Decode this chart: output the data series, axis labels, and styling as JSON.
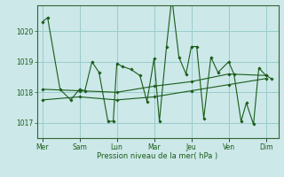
{
  "xlabel": "Pression niveau de la mer( hPa )",
  "bg_color": "#cce8e8",
  "grid_color": "#99cccc",
  "line_color": "#1a5c1a",
  "marker_color": "#1a5c1a",
  "ylim": [
    1016.5,
    1020.85
  ],
  "yticks": [
    1017,
    1018,
    1019,
    1020
  ],
  "x_day_labels": [
    "Mer",
    "Sam",
    "Lun",
    "Mar",
    "Jeu",
    "Ven",
    "Dim"
  ],
  "x_day_positions": [
    0,
    21,
    42,
    63,
    84,
    105,
    126
  ],
  "xlim": [
    -3,
    133
  ],
  "zigzag_points": [
    [
      0,
      1020.3
    ],
    [
      3,
      1020.45
    ],
    [
      10,
      1018.1
    ],
    [
      16,
      1017.75
    ],
    [
      21,
      1018.1
    ],
    [
      24,
      1018.05
    ],
    [
      28,
      1019.0
    ],
    [
      32,
      1018.65
    ],
    [
      37,
      1017.05
    ],
    [
      40,
      1017.05
    ],
    [
      42,
      1018.95
    ],
    [
      45,
      1018.85
    ],
    [
      50,
      1018.75
    ],
    [
      55,
      1018.55
    ],
    [
      59,
      1017.7
    ],
    [
      63,
      1019.1
    ],
    [
      66,
      1017.05
    ],
    [
      70,
      1019.5
    ],
    [
      73,
      1021.1
    ],
    [
      77,
      1019.15
    ],
    [
      81,
      1018.6
    ],
    [
      84,
      1019.5
    ],
    [
      87,
      1019.5
    ],
    [
      91,
      1017.15
    ],
    [
      95,
      1019.15
    ],
    [
      99,
      1018.65
    ],
    [
      105,
      1019.0
    ],
    [
      108,
      1018.6
    ],
    [
      112,
      1017.05
    ],
    [
      115,
      1017.65
    ],
    [
      119,
      1016.95
    ],
    [
      122,
      1018.8
    ],
    [
      126,
      1018.55
    ],
    [
      129,
      1018.45
    ]
  ],
  "trend_points": [
    [
      0,
      1018.1
    ],
    [
      21,
      1018.05
    ],
    [
      42,
      1018.0
    ],
    [
      63,
      1018.2
    ],
    [
      84,
      1018.35
    ],
    [
      105,
      1018.6
    ],
    [
      126,
      1018.55
    ]
  ],
  "trend2_points": [
    [
      0,
      1017.75
    ],
    [
      21,
      1017.85
    ],
    [
      42,
      1017.75
    ],
    [
      63,
      1017.85
    ],
    [
      84,
      1018.05
    ],
    [
      105,
      1018.25
    ],
    [
      126,
      1018.45
    ]
  ]
}
